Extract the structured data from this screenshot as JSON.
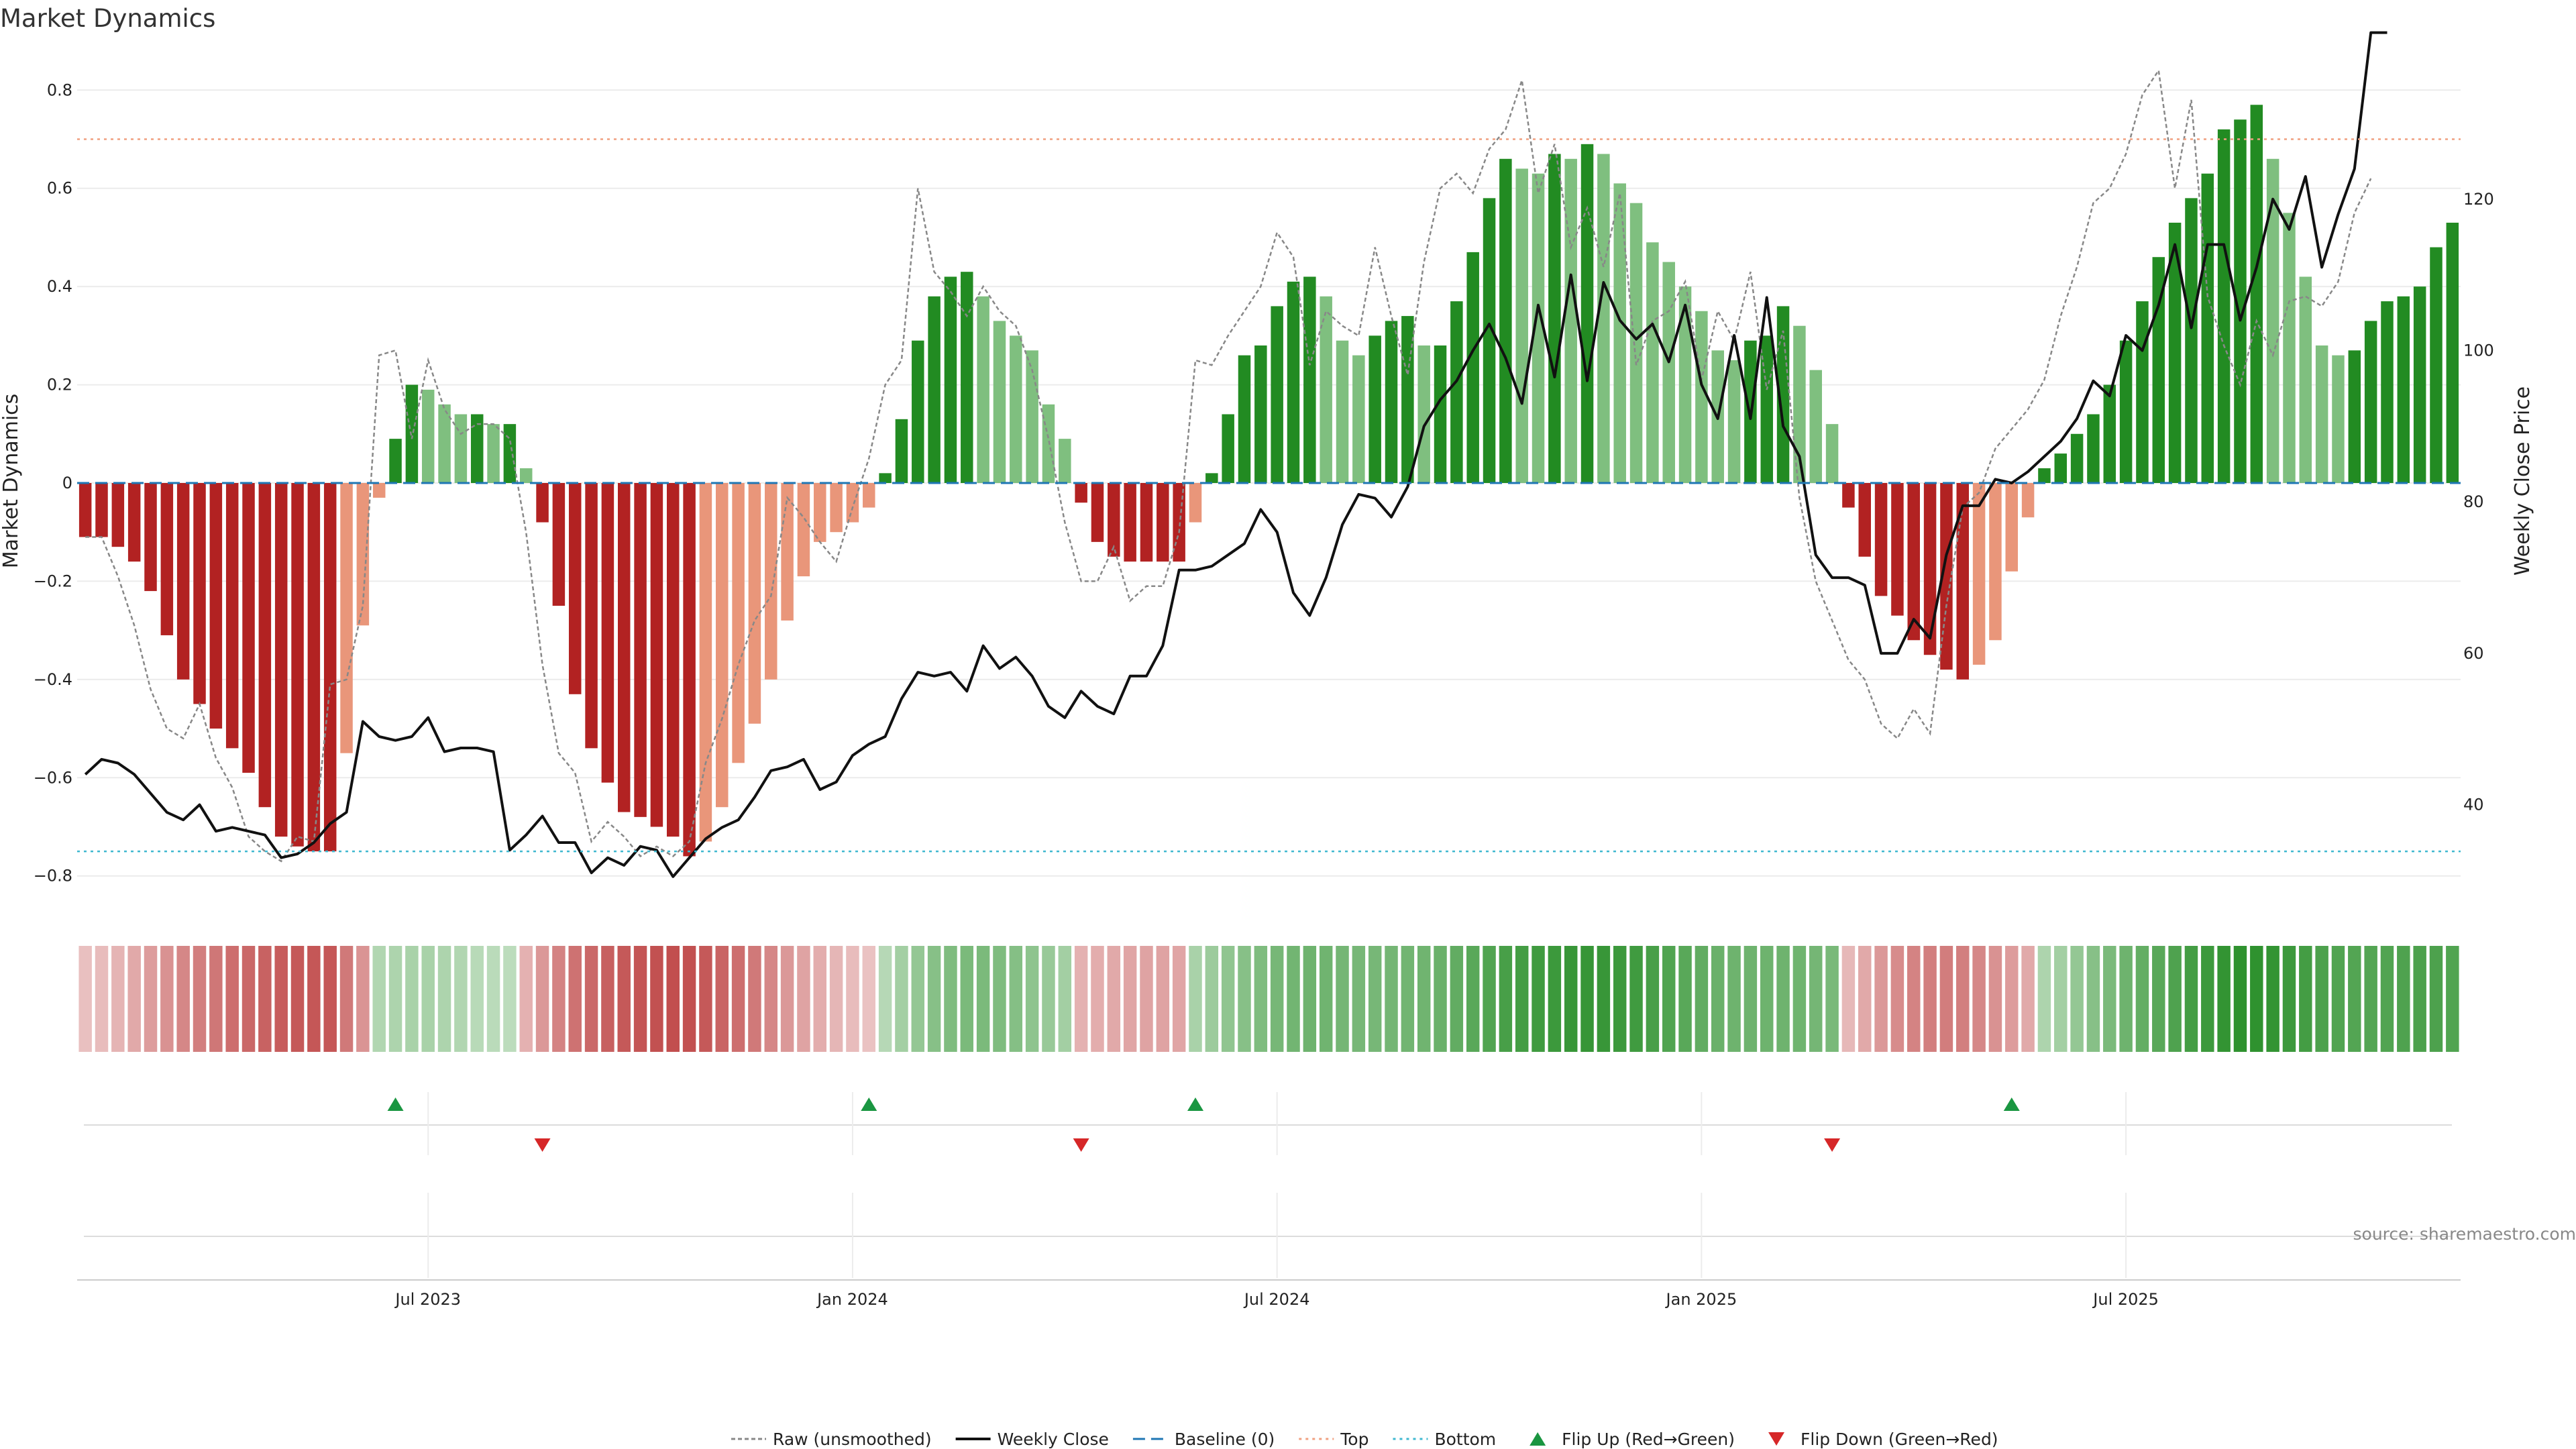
{
  "chart_data": {
    "type": "bar",
    "title": "Market Dynamics",
    "ylabel": "Market Dynamics",
    "ylabel_right": "Weekly Close Price",
    "ylim": [
      -0.84,
      0.84
    ],
    "ylim_right": [
      28,
      137
    ],
    "yticks": [
      -0.8,
      -0.6,
      -0.4,
      -0.2,
      0,
      0.2,
      0.4,
      0.6,
      0.8
    ],
    "yticks_right": [
      40,
      60,
      80,
      100,
      120
    ],
    "xticks": [
      {
        "label": "Jul 2023",
        "week": 21.5
      },
      {
        "label": "Jan 2024",
        "week": 47.5
      },
      {
        "label": "Jul 2024",
        "week": 73.5
      },
      {
        "label": "Jan 2025",
        "week": 99.5
      },
      {
        "label": "Jul 2025",
        "week": 125.5
      }
    ],
    "top_level": 0.7,
    "bottom_level": -0.75,
    "baseline": 0,
    "colors": {
      "strong_up": "#228b22",
      "weak_up": "#7fbf7f",
      "strong_down": "#b22222",
      "weak_down": "#e9967a",
      "close": "#111111",
      "raw": "#888888",
      "baseline": "#1f77b4",
      "top": "#f0a080",
      "bottom": "#3fb8d0",
      "flip_up": "#1a9641",
      "flip_down": "#d62728"
    },
    "series": [
      {
        "name": "Market Dynamics",
        "values": [
          -0.11,
          -0.11,
          -0.13,
          -0.16,
          -0.22,
          -0.31,
          -0.4,
          -0.45,
          -0.5,
          -0.54,
          -0.59,
          -0.66,
          -0.72,
          -0.74,
          -0.75,
          -0.75,
          -0.55,
          -0.29,
          -0.03,
          0.09,
          0.2,
          0.19,
          0.16,
          0.14,
          0.14,
          0.12,
          0.12,
          0.03,
          -0.08,
          -0.25,
          -0.43,
          -0.54,
          -0.61,
          -0.67,
          -0.68,
          -0.7,
          -0.72,
          -0.76,
          -0.73,
          -0.66,
          -0.57,
          -0.49,
          -0.4,
          -0.28,
          -0.19,
          -0.12,
          -0.1,
          -0.08,
          -0.05,
          0.02,
          0.13,
          0.29,
          0.38,
          0.42,
          0.43,
          0.38,
          0.33,
          0.3,
          0.27,
          0.16,
          0.09,
          -0.04,
          -0.12,
          -0.15,
          -0.16,
          -0.16,
          -0.16,
          -0.16,
          -0.08,
          0.02,
          0.14,
          0.26,
          0.28,
          0.36,
          0.41,
          0.42,
          0.38,
          0.29,
          0.26,
          0.3,
          0.33,
          0.34,
          0.28,
          0.28,
          0.37,
          0.47,
          0.58,
          0.66,
          0.64,
          0.63,
          0.67,
          0.66,
          0.69,
          0.67,
          0.61,
          0.57,
          0.49,
          0.45,
          0.4,
          0.35,
          0.27,
          0.25,
          0.29,
          0.3,
          0.36,
          0.32,
          0.23,
          0.12,
          -0.05,
          -0.15,
          -0.23,
          -0.27,
          -0.32,
          -0.35,
          -0.38,
          -0.4,
          -0.37,
          -0.32,
          -0.18,
          -0.07,
          0.03,
          0.06,
          0.1,
          0.14,
          0.2,
          0.29,
          0.37,
          0.46,
          0.53,
          0.58,
          0.63,
          0.72,
          0.74,
          0.77,
          0.66,
          0.55,
          0.42,
          0.28,
          0.26,
          0.27,
          0.33,
          0.37,
          0.38,
          0.4,
          0.48,
          0.53
        ]
      },
      {
        "name": "Raw (unsmoothed)",
        "values": [
          -0.11,
          -0.11,
          -0.19,
          -0.29,
          -0.42,
          -0.5,
          -0.52,
          -0.45,
          -0.56,
          -0.62,
          -0.72,
          -0.75,
          -0.77,
          -0.72,
          -0.73,
          -0.41,
          -0.4,
          -0.25,
          0.26,
          0.27,
          0.09,
          0.25,
          0.15,
          0.1,
          0.12,
          0.12,
          0.09,
          -0.1,
          -0.37,
          -0.55,
          -0.59,
          -0.73,
          -0.69,
          -0.72,
          -0.76,
          -0.74,
          -0.76,
          -0.73,
          -0.57,
          -0.48,
          -0.37,
          -0.28,
          -0.23,
          -0.03,
          -0.07,
          -0.12,
          -0.16,
          -0.05,
          0.05,
          0.2,
          0.25,
          0.6,
          0.43,
          0.39,
          0.34,
          0.4,
          0.35,
          0.32,
          0.23,
          0.09,
          -0.08,
          -0.2,
          -0.2,
          -0.13,
          -0.24,
          -0.21,
          -0.21,
          -0.1,
          0.25,
          0.24,
          0.3,
          0.35,
          0.4,
          0.51,
          0.46,
          0.24,
          0.35,
          0.32,
          0.3,
          0.48,
          0.34,
          0.22,
          0.45,
          0.6,
          0.63,
          0.59,
          0.68,
          0.72,
          0.82,
          0.59,
          0.69,
          0.48,
          0.56,
          0.44,
          0.59,
          0.24,
          0.33,
          0.35,
          0.41,
          0.21,
          0.35,
          0.29,
          0.43,
          0.19,
          0.31,
          -0.03,
          -0.2,
          -0.28,
          -0.36,
          -0.4,
          -0.49,
          -0.52,
          -0.46,
          -0.51,
          -0.25,
          -0.05,
          -0.02,
          0.07,
          0.11,
          0.15,
          0.21,
          0.34,
          0.44,
          0.57,
          0.6,
          0.67,
          0.79,
          0.84,
          0.6,
          0.78,
          0.38,
          0.28,
          0.2,
          0.33,
          0.26,
          0.37,
          0.38,
          0.36,
          0.41,
          0.55,
          0.62
        ]
      },
      {
        "name": "Weekly Close",
        "values": [
          44,
          46,
          45.5,
          44,
          41.5,
          39,
          38,
          40,
          36.5,
          37,
          36.5,
          36,
          33,
          33.5,
          35,
          37.5,
          39,
          51,
          49,
          48.5,
          49,
          51.5,
          47,
          47.5,
          47.5,
          47,
          34,
          36,
          38.5,
          35,
          35,
          31,
          33,
          32,
          34.5,
          34,
          30.5,
          33,
          35.5,
          37,
          38,
          41,
          44.5,
          45,
          46,
          42,
          43,
          46.5,
          48,
          49,
          54,
          57.5,
          57,
          57.5,
          55,
          61,
          58,
          59.5,
          57,
          53,
          51.5,
          55,
          53,
          52,
          57,
          57,
          61,
          71,
          71,
          71.5,
          73,
          74.5,
          79,
          76,
          68,
          65,
          70,
          77,
          81,
          80.5,
          78,
          82,
          90,
          93.5,
          96,
          100,
          103.5,
          99,
          93,
          106,
          96.5,
          110,
          96,
          109,
          104,
          101.5,
          103.5,
          98.5,
          106,
          95.5,
          91,
          102,
          91,
          107,
          90,
          86,
          73,
          70,
          70,
          69,
          60,
          60,
          64.5,
          62,
          73,
          79.5,
          79.5,
          83,
          82.5,
          84,
          86,
          88,
          91,
          96,
          94,
          102,
          100,
          106,
          114,
          103,
          114,
          114,
          104,
          111,
          120,
          116,
          123,
          111,
          118,
          124,
          142,
          142
        ]
      }
    ],
    "heatmap": {
      "name": "Regime strip",
      "values": [
        -0.11,
        -0.13,
        -0.17,
        -0.22,
        -0.28,
        -0.33,
        -0.38,
        -0.42,
        -0.46,
        -0.5,
        -0.53,
        -0.56,
        -0.58,
        -0.6,
        -0.61,
        -0.61,
        -0.45,
        -0.32,
        0.18,
        0.2,
        0.22,
        0.22,
        0.2,
        0.18,
        0.15,
        0.14,
        0.13,
        -0.18,
        -0.3,
        -0.4,
        -0.48,
        -0.53,
        -0.57,
        -0.6,
        -0.62,
        -0.64,
        -0.65,
        -0.64,
        -0.6,
        -0.55,
        -0.5,
        -0.45,
        -0.38,
        -0.3,
        -0.25,
        -0.2,
        -0.16,
        -0.13,
        -0.1,
        0.16,
        0.25,
        0.32,
        0.38,
        0.42,
        0.44,
        0.44,
        0.42,
        0.39,
        0.35,
        0.3,
        0.25,
        -0.18,
        -0.2,
        -0.22,
        -0.24,
        -0.25,
        -0.25,
        -0.24,
        0.22,
        0.28,
        0.34,
        0.38,
        0.42,
        0.46,
        0.48,
        0.5,
        0.49,
        0.47,
        0.46,
        0.46,
        0.47,
        0.48,
        0.49,
        0.52,
        0.56,
        0.6,
        0.64,
        0.68,
        0.7,
        0.72,
        0.74,
        0.76,
        0.77,
        0.76,
        0.74,
        0.72,
        0.68,
        0.64,
        0.6,
        0.56,
        0.52,
        0.5,
        0.5,
        0.5,
        0.5,
        0.49,
        0.47,
        0.45,
        -0.15,
        -0.22,
        -0.3,
        -0.36,
        -0.4,
        -0.42,
        -0.43,
        -0.42,
        -0.38,
        -0.33,
        -0.28,
        -0.22,
        0.2,
        0.25,
        0.32,
        0.38,
        0.44,
        0.5,
        0.55,
        0.6,
        0.65,
        0.7,
        0.74,
        0.78,
        0.8,
        0.8,
        0.78,
        0.74,
        0.7,
        0.66,
        0.64,
        0.63,
        0.63,
        0.64,
        0.65,
        0.66,
        0.66,
        0.64
      ]
    },
    "flips_up": [
      19.5,
      48.5,
      68.5,
      118.5
    ],
    "flips_down": [
      28.5,
      61.5,
      107.5
    ],
    "legend": [
      {
        "label": "Raw (unsmoothed)",
        "kind": "raw"
      },
      {
        "label": "Weekly Close",
        "kind": "close"
      },
      {
        "label": "Baseline (0)",
        "kind": "baseline"
      },
      {
        "label": "Top",
        "kind": "top"
      },
      {
        "label": "Bottom",
        "kind": "bottom"
      },
      {
        "label": "Flip Up (Red→Green)",
        "kind": "flip_up"
      },
      {
        "label": "Flip Down (Green→Red)",
        "kind": "flip_down"
      }
    ],
    "legend_position": "bottom-center",
    "source": "source: sharemaestro.com"
  }
}
